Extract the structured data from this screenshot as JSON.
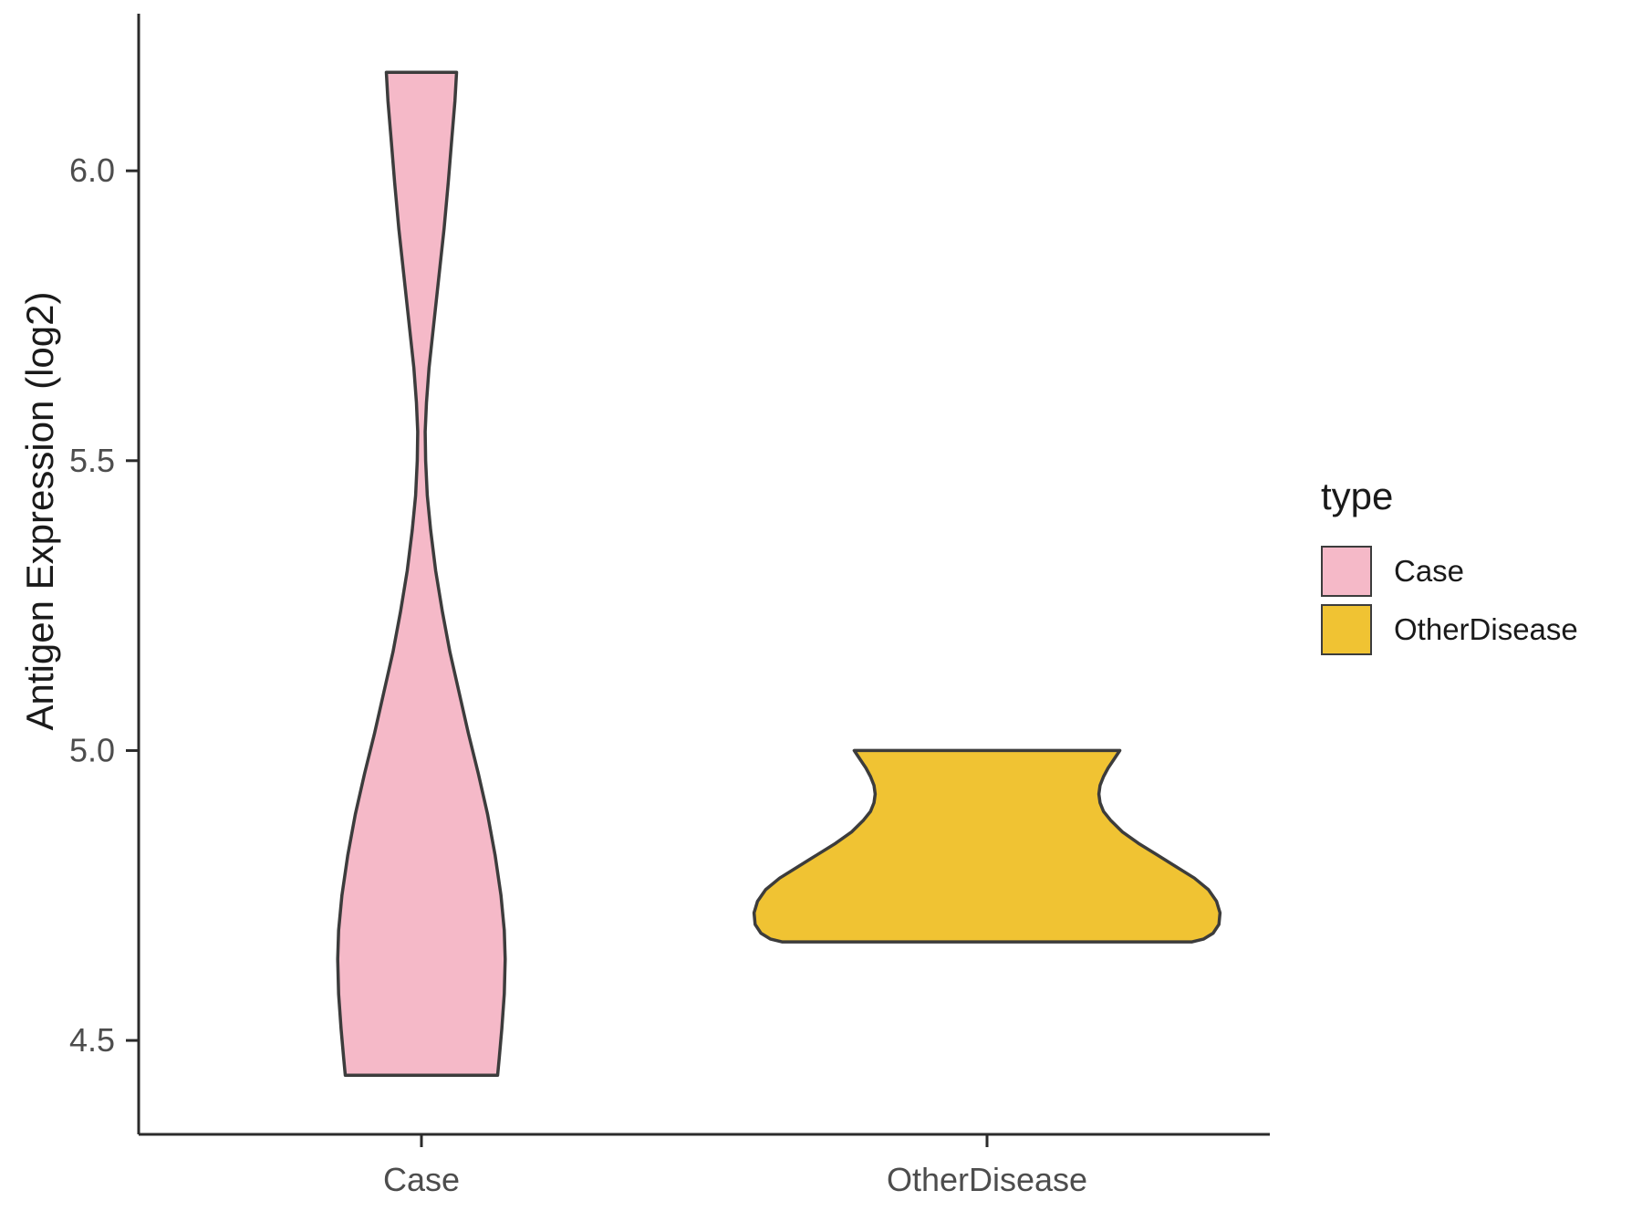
{
  "chart_data": {
    "type": "violin",
    "title": "",
    "xlabel": "",
    "ylabel": "Antigen Expression (log2)",
    "categories": [
      "Case",
      "OtherDisease"
    ],
    "x_tick_labels": [
      "Case",
      "OtherDisease"
    ],
    "y_ticks": [
      6.0,
      5.5,
      5.0,
      4.5
    ],
    "y_tick_labels": [
      "6.0",
      "5.5",
      "5.0",
      "4.5"
    ],
    "ylim": [
      4.338,
      6.271
    ],
    "grid": "off",
    "legend": {
      "title": "type",
      "position": "right",
      "entries": [
        {
          "label": "Case",
          "color": "#F5B9C8"
        },
        {
          "label": "OtherDisease",
          "color": "#F0C333"
        }
      ]
    },
    "style": {
      "violin_stroke": "#3c3c3c",
      "axis_color": "#2b2b2b",
      "tick_label_color": "#4d4d4d",
      "title_color": "#1a1a1a",
      "background": "#ffffff"
    },
    "series": [
      {
        "name": "Case",
        "fill": "#F5B9C8",
        "center": 0.25,
        "max_halfwidth": 0.074,
        "value_range": [
          4.44,
          6.17
        ],
        "profile": [
          [
            6.17,
            0.42
          ],
          [
            6.12,
            0.4
          ],
          [
            6.05,
            0.36
          ],
          [
            5.98,
            0.32
          ],
          [
            5.9,
            0.27
          ],
          [
            5.82,
            0.21
          ],
          [
            5.74,
            0.15
          ],
          [
            5.66,
            0.09
          ],
          [
            5.6,
            0.06
          ],
          [
            5.55,
            0.045
          ],
          [
            5.5,
            0.05
          ],
          [
            5.44,
            0.07
          ],
          [
            5.38,
            0.11
          ],
          [
            5.31,
            0.17
          ],
          [
            5.24,
            0.25
          ],
          [
            5.17,
            0.34
          ],
          [
            5.1,
            0.45
          ],
          [
            5.03,
            0.56
          ],
          [
            4.96,
            0.68
          ],
          [
            4.89,
            0.79
          ],
          [
            4.82,
            0.88
          ],
          [
            4.75,
            0.95
          ],
          [
            4.69,
            0.99
          ],
          [
            4.64,
            1.0
          ],
          [
            4.58,
            0.99
          ],
          [
            4.52,
            0.96
          ],
          [
            4.47,
            0.93
          ],
          [
            4.44,
            0.91
          ]
        ]
      },
      {
        "name": "OtherDisease",
        "fill": "#F0C333",
        "center": 0.75,
        "max_halfwidth": 0.206,
        "value_range": [
          4.67,
          5.0
        ],
        "profile": [
          [
            5.0,
            0.57
          ],
          [
            4.985,
            0.545
          ],
          [
            4.97,
            0.52
          ],
          [
            4.955,
            0.5
          ],
          [
            4.94,
            0.485
          ],
          [
            4.925,
            0.48
          ],
          [
            4.91,
            0.485
          ],
          [
            4.895,
            0.5
          ],
          [
            4.88,
            0.53
          ],
          [
            4.86,
            0.58
          ],
          [
            4.84,
            0.65
          ],
          [
            4.82,
            0.73
          ],
          [
            4.8,
            0.81
          ],
          [
            4.78,
            0.89
          ],
          [
            4.76,
            0.95
          ],
          [
            4.74,
            0.985
          ],
          [
            4.72,
            1.0
          ],
          [
            4.7,
            0.995
          ],
          [
            4.685,
            0.97
          ],
          [
            4.675,
            0.93
          ],
          [
            4.67,
            0.88
          ]
        ]
      }
    ]
  }
}
